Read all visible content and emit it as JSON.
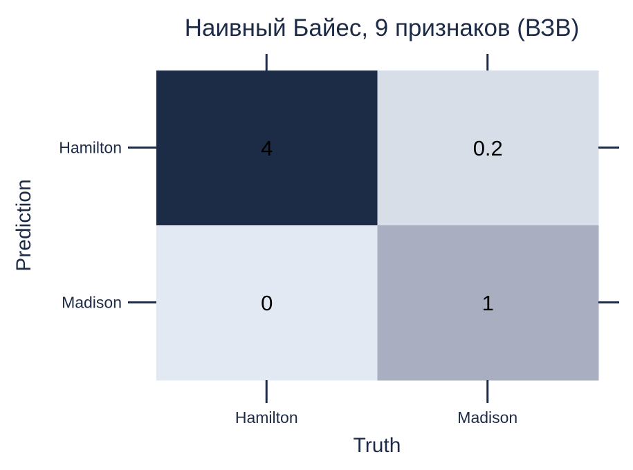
{
  "chart_data": {
    "type": "heatmap",
    "title": "Наивный Байес, 9 признаков (ВЗВ)",
    "xlabel": "Truth",
    "ylabel": "Prediction",
    "x_categories": [
      "Hamilton",
      "Madison"
    ],
    "y_categories": [
      "Hamilton",
      "Madison"
    ],
    "values": [
      [
        4,
        0.2
      ],
      [
        0,
        1
      ]
    ],
    "value_labels": [
      [
        "4",
        "0.2"
      ],
      [
        "0",
        "1"
      ]
    ],
    "colors": [
      [
        "#1c2b46",
        "#d8dee8"
      ],
      [
        "#e3e9f3",
        "#a9afc0"
      ]
    ],
    "grid": false,
    "legend": "none"
  }
}
